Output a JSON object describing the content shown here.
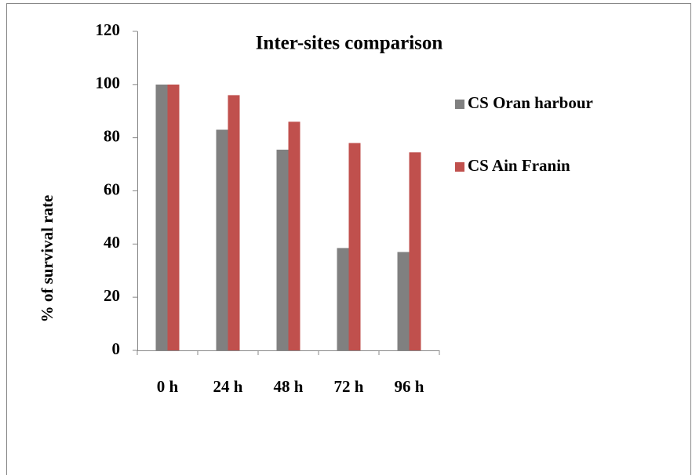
{
  "chart_data": {
    "type": "bar",
    "title": "Inter-sites comparison",
    "y_label": "% of survival rate",
    "categories": [
      "0 h",
      "24 h",
      "48 h",
      "72 h",
      "96 h"
    ],
    "series": [
      {
        "name": "CS Oran harbour",
        "color": "#808080",
        "values": [
          100,
          83,
          75.5,
          38.5,
          37
        ]
      },
      {
        "name": "CS Ain Franin",
        "color": "#c0504d",
        "values": [
          100,
          96,
          86,
          78,
          74.5
        ]
      }
    ],
    "ylim": [
      0,
      120
    ],
    "yticks": [
      0,
      20,
      40,
      60,
      80,
      100,
      120
    ],
    "legend": "right",
    "grid": false
  }
}
